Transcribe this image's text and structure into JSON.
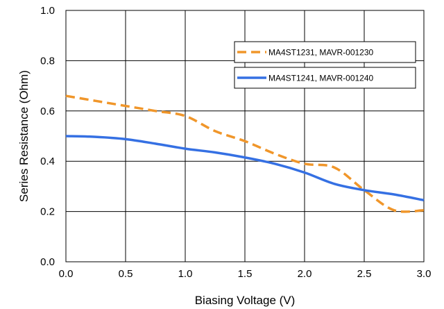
{
  "chart_data": {
    "type": "line",
    "title": "",
    "xlabel": "Biasing Voltage (V)",
    "ylabel": "Series Resistance (Ohm)",
    "xlim": [
      0.0,
      3.0
    ],
    "ylim": [
      0.0,
      1.0
    ],
    "xticks": [
      "0.0",
      "0.5",
      "1.0",
      "1.5",
      "2.0",
      "2.5",
      "3.0"
    ],
    "yticks": [
      "0.0",
      "0.2",
      "0.4",
      "0.6",
      "0.8",
      "1.0"
    ],
    "grid": true,
    "legend_position": "upper-right",
    "series": [
      {
        "name": "MA4ST1231, MAVR-001230",
        "color": "#f0962a",
        "style": "dashed",
        "x": [
          0.0,
          0.25,
          0.5,
          0.75,
          1.0,
          1.25,
          1.5,
          1.75,
          2.0,
          2.25,
          2.5,
          2.75,
          3.0
        ],
        "y": [
          0.66,
          0.64,
          0.62,
          0.6,
          0.58,
          0.52,
          0.48,
          0.43,
          0.39,
          0.375,
          0.285,
          0.205,
          0.205
        ]
      },
      {
        "name": "MA4ST1241, MAVR-001240",
        "color": "#3570e3",
        "style": "solid",
        "x": [
          0.0,
          0.25,
          0.5,
          0.75,
          1.0,
          1.25,
          1.5,
          1.75,
          2.0,
          2.25,
          2.5,
          2.75,
          3.0
        ],
        "y": [
          0.5,
          0.497,
          0.488,
          0.47,
          0.45,
          0.435,
          0.415,
          0.39,
          0.355,
          0.31,
          0.285,
          0.268,
          0.245
        ]
      }
    ]
  }
}
